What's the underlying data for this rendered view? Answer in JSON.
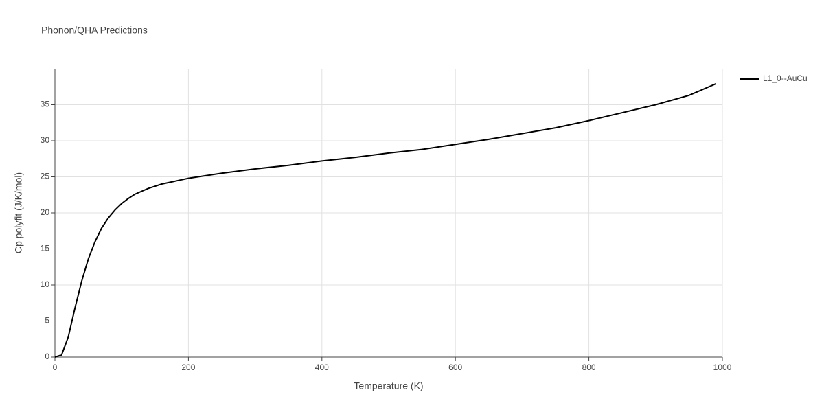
{
  "chart_data": {
    "type": "line",
    "title": "Phonon/QHA Predictions",
    "x_label": "Temperature (K)",
    "y_label": "Cp polyfit (J/K/mol)",
    "x": [
      0,
      10,
      20,
      30,
      40,
      50,
      60,
      70,
      80,
      90,
      100,
      110,
      120,
      130,
      140,
      150,
      160,
      180,
      200,
      250,
      300,
      350,
      400,
      450,
      500,
      550,
      600,
      650,
      700,
      750,
      800,
      850,
      900,
      950,
      990
    ],
    "series": [
      {
        "name": "L1_0--AuCu",
        "color": "#000000",
        "values": [
          0,
          0.3,
          2.8,
          6.8,
          10.5,
          13.6,
          16.0,
          17.9,
          19.3,
          20.4,
          21.3,
          22.0,
          22.6,
          23.0,
          23.4,
          23.7,
          24.0,
          24.4,
          24.8,
          25.5,
          26.1,
          26.6,
          27.2,
          27.7,
          28.3,
          28.8,
          29.5,
          30.2,
          31.0,
          31.8,
          32.8,
          33.9,
          35.0,
          36.3,
          37.9
        ]
      }
    ],
    "xlim": [
      0,
      1000
    ],
    "xticks": [
      0,
      200,
      400,
      600,
      800,
      1000
    ],
    "ylim": [
      0,
      40
    ],
    "yticks": [
      0,
      5,
      10,
      15,
      20,
      25,
      30,
      35
    ],
    "grid": true,
    "legend": "right"
  }
}
